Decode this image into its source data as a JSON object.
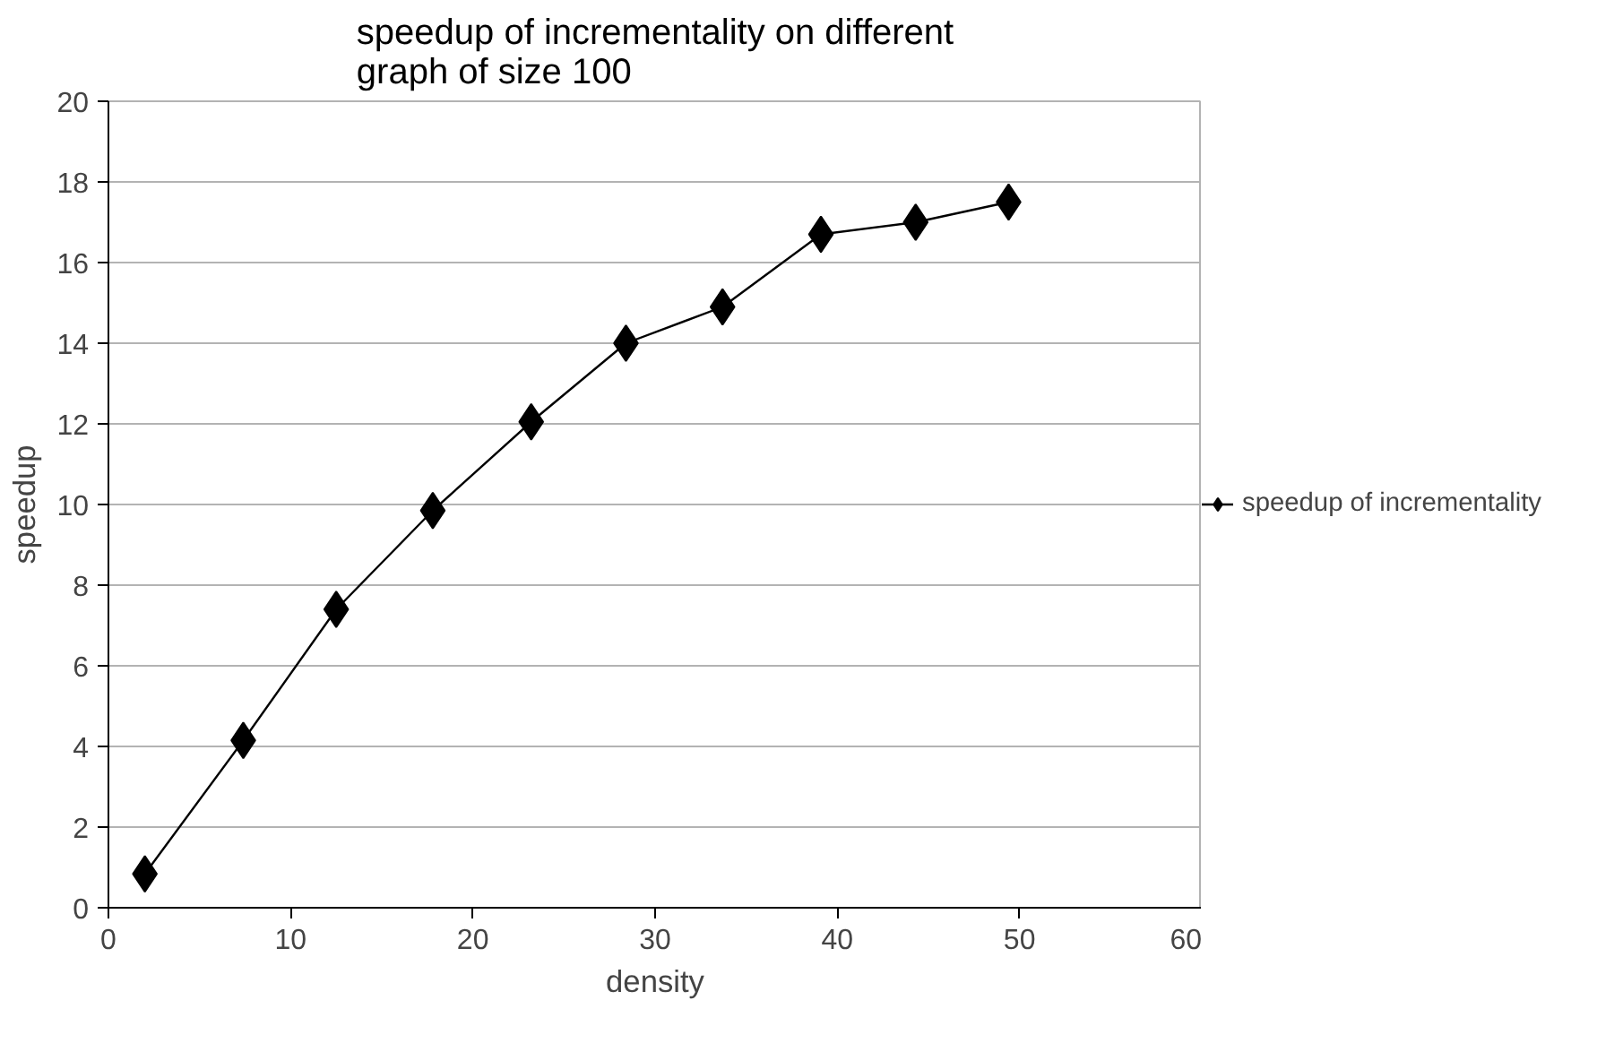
{
  "chart_data": {
    "type": "line",
    "title": "speedup of incrementality on different\ngraph of size 100",
    "xlabel": "density",
    "ylabel": "speedup",
    "x": [
      2,
      7.4,
      12.5,
      17.8,
      23.2,
      28.4,
      33.7,
      39.1,
      44.3,
      49.4
    ],
    "series": [
      {
        "name": "speedup of incrementality",
        "color": "#000000",
        "values": [
          0.84,
          4.15,
          7.4,
          9.85,
          12.05,
          14.0,
          14.9,
          16.7,
          17.0,
          17.5
        ]
      }
    ],
    "xlim": [
      0,
      60
    ],
    "xticks": [
      0,
      10,
      20,
      30,
      40,
      50,
      60
    ],
    "ylim": [
      0,
      20
    ],
    "yticks": [
      0,
      2,
      4,
      6,
      8,
      10,
      12,
      14,
      16,
      18,
      20
    ],
    "grid": "y",
    "legend": "right",
    "marker": "diamond",
    "line_style": "solid"
  }
}
